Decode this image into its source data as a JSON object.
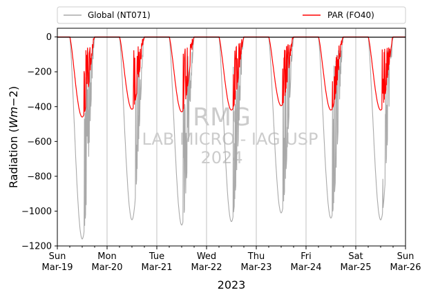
{
  "chart_data": {
    "type": "line",
    "ylabel_main": "Radiation (",
    "ylabel_math": "Wm",
    "ylabel_tail": "−2)",
    "xlabel": "2023",
    "ylim": [
      -1200,
      50
    ],
    "y_ticks": [
      0,
      -200,
      -400,
      -600,
      -800,
      -1000,
      -1200
    ],
    "y_tick_labels": [
      "0",
      "−200",
      "−400",
      "−600",
      "−800",
      "−1000",
      "−1200"
    ],
    "xlim": [
      "2023-03-19",
      "2023-03-26"
    ],
    "x_tick_labels": [
      {
        "day": "Sun",
        "date": "Mar-19"
      },
      {
        "day": "Mon",
        "date": "Mar-20"
      },
      {
        "day": "Tue",
        "date": "Mar-21"
      },
      {
        "day": "Wed",
        "date": "Mar-22"
      },
      {
        "day": "Thu",
        "date": "Mar-23"
      },
      {
        "day": "Fri",
        "date": "Mar-24"
      },
      {
        "day": "Sat",
        "date": "Mar-25"
      },
      {
        "day": "Sun",
        "date": "Mar-26"
      }
    ],
    "grid_x": true,
    "legend_placement": "top, above plot",
    "series": [
      {
        "name": "Global (NT071)",
        "color": "#a9a9a9",
        "daily_min": [
          -1160,
          -1050,
          -1080,
          -1060,
          -1010,
          -1040,
          -1050
        ]
      },
      {
        "name": "PAR (FO40)",
        "color": "#ff0000",
        "daily_min": [
          -460,
          -415,
          -430,
          -420,
          -395,
          -420,
          -420
        ]
      }
    ],
    "watermark": {
      "line1": "RMG",
      "line2": "LAB MICRO - IAG USP",
      "line3": "2024"
    }
  }
}
